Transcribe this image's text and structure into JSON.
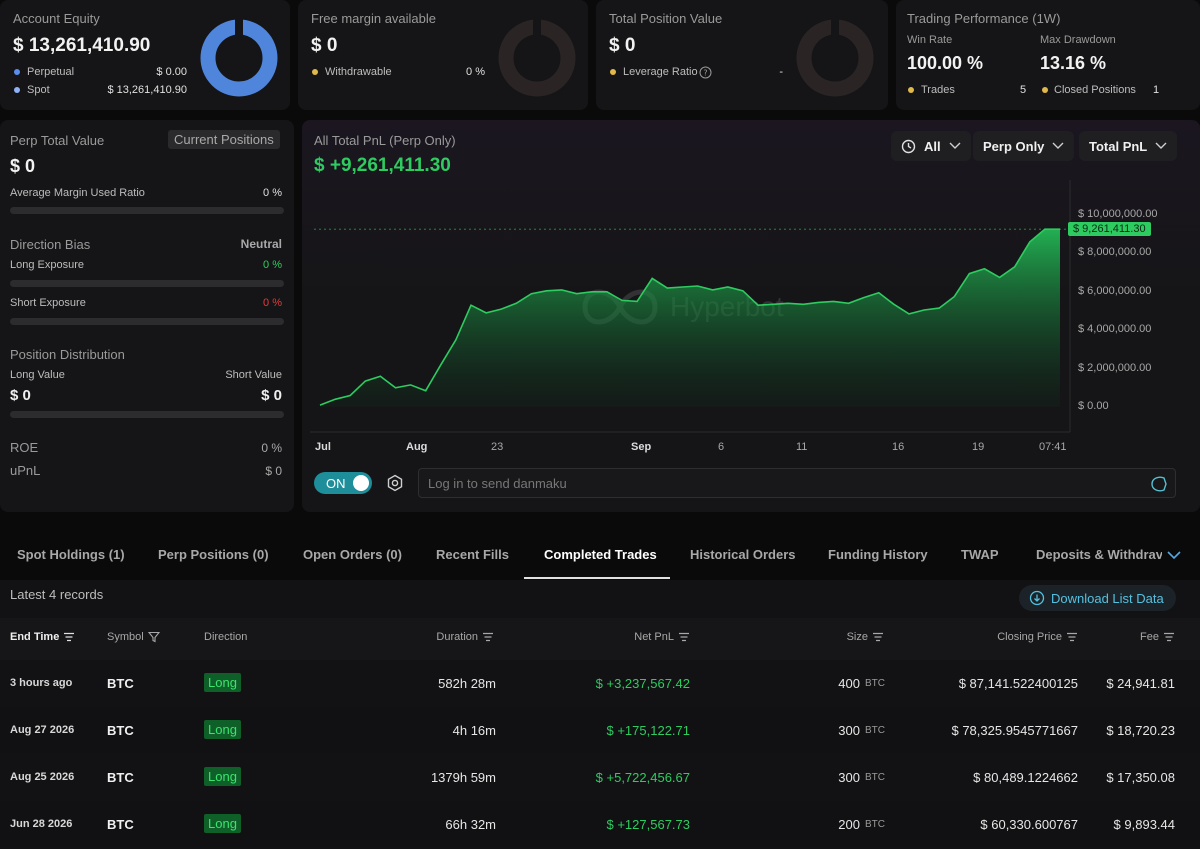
{
  "equity": {
    "label": "Account Equity",
    "value": "$ 13,261,410.90",
    "rows": [
      {
        "name": "Perpetual",
        "value": "$ 0.00",
        "color": "#5b8def"
      },
      {
        "name": "Spot",
        "value": "$ 13,261,410.90",
        "color": "#8fb2f5"
      }
    ],
    "donut_color": "#4f86dc",
    "spot_fraction": 1.0
  },
  "free_margin": {
    "label": "Free margin available",
    "value": "$ 0",
    "row": {
      "name": "Withdrawable",
      "value": "0 %"
    }
  },
  "position_value": {
    "label": "Total Position Value",
    "value": "$ 0",
    "row": {
      "name": "Leverage Ratio",
      "value": "-"
    }
  },
  "performance": {
    "label": "Trading Performance (1W)",
    "win_rate_label": "Win Rate",
    "win_rate": "100.00 %",
    "drawdown_label": "Max Drawdown",
    "drawdown": "13.16 %",
    "trades_label": "Trades",
    "trades": "5",
    "closed_label": "Closed Positions",
    "closed": "1"
  },
  "perp": {
    "label": "Perp Total Value",
    "current_positions": "Current Positions",
    "value": "$ 0",
    "avg_margin_label": "Average Margin Used Ratio",
    "avg_margin": "0 %",
    "bias_label": "Direction Bias",
    "bias": "Neutral",
    "long_label": "Long Exposure",
    "long": "0 %",
    "short_label": "Short Exposure",
    "short": "0 %",
    "dist_label": "Position Distribution",
    "long_value_label": "Long Value",
    "long_value": "$ 0",
    "short_value_label": "Short Value",
    "short_value": "$ 0",
    "roe_label": "ROE",
    "roe": "0 %",
    "upnl_label": "uPnL",
    "upnl": "$ 0"
  },
  "pnl_chart": {
    "title": "All Total PnL (Perp Only)",
    "value": "$ +9,261,411.30",
    "filters": [
      "All",
      "Perp Only",
      "Total PnL"
    ],
    "toggle": "ON",
    "danmaku_placeholder": "Log in to send danmaku",
    "watermark": "Hyperbot",
    "accent": "#2ecc60"
  },
  "chart_data": {
    "type": "area",
    "series": [
      {
        "values": [
          0.1,
          0.4,
          0.6,
          1.35,
          1.6,
          1.0,
          1.15,
          0.85,
          2.2,
          3.5,
          5.3,
          4.9,
          5.1,
          5.4,
          5.9,
          6.05,
          6.1,
          5.9,
          6.0,
          6.0,
          5.55,
          5.5,
          6.7,
          6.2,
          6.25,
          6.3,
          6.1,
          6.25,
          6.05,
          5.3,
          5.35,
          5.4,
          5.35,
          5.45,
          5.5,
          5.4,
          5.7,
          5.95,
          5.35,
          4.85,
          5.05,
          5.15,
          5.75,
          6.95,
          7.2,
          6.75,
          7.3,
          8.6,
          9.26,
          9.26
        ]
      }
    ],
    "x_ticks": [
      "Jul",
      "Aug",
      "23",
      "Sep",
      "6",
      "11",
      "16",
      "19",
      "07:41"
    ],
    "y_ticks": [
      "$ 0.00",
      "$ 2,000,000.00",
      "$ 4,000,000.00",
      "$ 6,000,000.00",
      "$ 8,000,000.00",
      "$ 10,000,000.00"
    ],
    "ylim": [
      0,
      10000000
    ],
    "current_label": "$ 9,261,411.30",
    "grid": false
  },
  "tabs": [
    "Spot Holdings (1)",
    "Perp Positions (0)",
    "Open Orders (0)",
    "Recent Fills",
    "Completed Trades",
    "Historical Orders",
    "Funding History",
    "TWAP",
    "Deposits & Withdrav"
  ],
  "active_tab": "Completed Trades",
  "records_label": "Latest 4 records",
  "download_label": "Download List Data",
  "table": {
    "headers": [
      "End Time",
      "Symbol",
      "Direction",
      "Duration",
      "Net PnL",
      "Size",
      "Closing Price",
      "Fee"
    ],
    "rows": [
      {
        "time": "3 hours ago",
        "symbol": "BTC",
        "direction": "Long",
        "duration": "582h 28m",
        "pnl": "$ +3,237,567.42",
        "size": "400",
        "unit": "BTC",
        "price": "$ 87,141.522400125",
        "fee": "$ 24,941.81"
      },
      {
        "time": "Aug 27 2026",
        "symbol": "BTC",
        "direction": "Long",
        "duration": "4h 16m",
        "pnl": "$ +175,122.71",
        "size": "300",
        "unit": "BTC",
        "price": "$ 78,325.9545771667",
        "fee": "$ 18,720.23"
      },
      {
        "time": "Aug 25 2026",
        "symbol": "BTC",
        "direction": "Long",
        "duration": "1379h 59m",
        "pnl": "$ +5,722,456.67",
        "size": "300",
        "unit": "BTC",
        "price": "$ 80,489.1224662",
        "fee": "$ 17,350.08"
      },
      {
        "time": "Jun 28 2026",
        "symbol": "BTC",
        "direction": "Long",
        "duration": "66h 32m",
        "pnl": "$ +127,567.73",
        "size": "200",
        "unit": "BTC",
        "price": "$ 60,330.600767",
        "fee": "$ 9,893.44"
      }
    ]
  }
}
